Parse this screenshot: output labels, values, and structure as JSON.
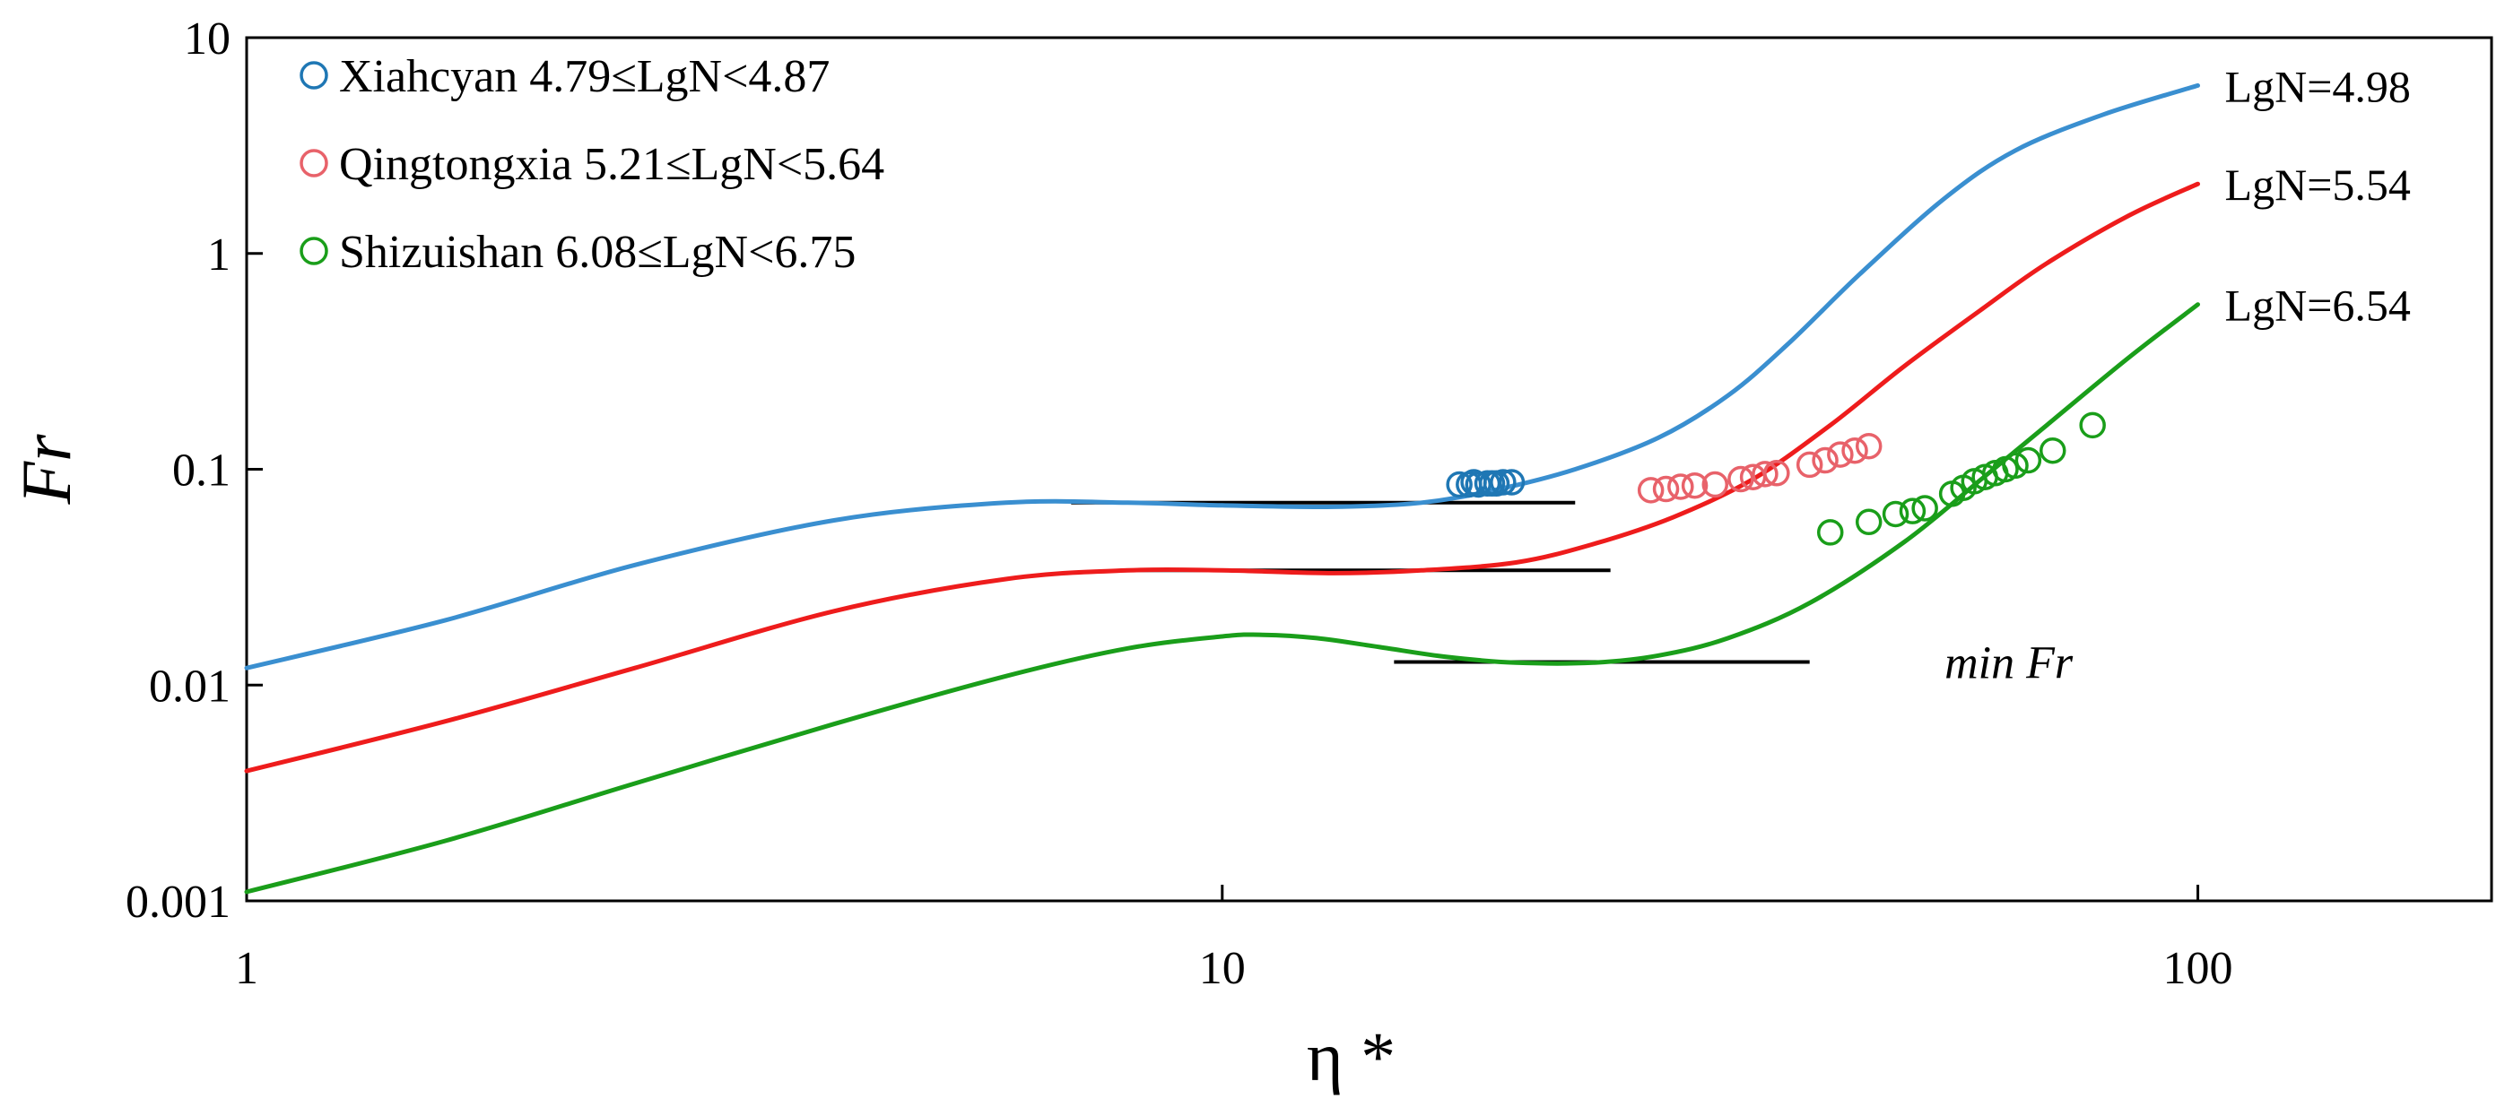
{
  "chart_data": {
    "type": "line",
    "xscale": "log",
    "yscale": "log",
    "xlim": [
      1,
      200
    ],
    "ylim": [
      0.001,
      10
    ],
    "xlabel": "η *",
    "ylabel": "Fr",
    "x_ticks": [
      1,
      10,
      100
    ],
    "x_tick_labels": [
      "1",
      "10",
      "100"
    ],
    "y_ticks": [
      0.001,
      0.01,
      0.1,
      1,
      10
    ],
    "y_tick_labels": [
      "0.001",
      "0.01",
      "0.1",
      "1",
      "10"
    ],
    "legend_position": "top-left",
    "legend": [
      {
        "label": "Xiahcyan 4.79≤LgN<4.87",
        "color": "#1f77b4"
      },
      {
        "label": "Qingtongxia 5.21≤LgN<5.64",
        "color": "#e8626a"
      },
      {
        "label": "Shizuishan 6.08≤LgN<6.75",
        "color": "#1a9e1a"
      }
    ],
    "curves": [
      {
        "name": "LgN=4.98",
        "label": "LgN=4.98",
        "color": "#3a8fd0",
        "x": [
          1,
          1.6,
          2.5,
          4,
          6,
          8,
          10,
          13,
          16,
          19,
          23,
          28,
          33,
          38,
          45,
          55,
          65,
          80,
          100
        ],
        "y": [
          0.012,
          0.02,
          0.036,
          0.058,
          0.07,
          0.07,
          0.068,
          0.067,
          0.07,
          0.08,
          0.1,
          0.14,
          0.22,
          0.38,
          0.8,
          1.8,
          3.0,
          4.4,
          6.0
        ]
      },
      {
        "name": "LgN=5.54",
        "label": "LgN=5.54",
        "color": "#ee1c1c",
        "x": [
          1,
          1.6,
          2.5,
          4,
          6,
          8,
          10,
          13,
          16,
          20,
          24,
          29,
          35,
          42,
          50,
          60,
          70,
          85,
          100
        ],
        "y": [
          0.004,
          0.0068,
          0.012,
          0.022,
          0.031,
          0.034,
          0.034,
          0.033,
          0.034,
          0.037,
          0.045,
          0.06,
          0.09,
          0.16,
          0.3,
          0.55,
          0.9,
          1.5,
          2.1
        ]
      },
      {
        "name": "LgN=6.54",
        "label": "LgN=6.54",
        "color": "#1a9e1a",
        "x": [
          1,
          1.6,
          2.5,
          4,
          6,
          8,
          10,
          11,
          12.5,
          14.5,
          17,
          20,
          24,
          28,
          33,
          40,
          50,
          60,
          70,
          85,
          100
        ],
        "y": [
          0.0011,
          0.0019,
          0.0035,
          0.0066,
          0.011,
          0.0148,
          0.0168,
          0.0171,
          0.0165,
          0.015,
          0.0135,
          0.0127,
          0.0127,
          0.0137,
          0.0165,
          0.024,
          0.046,
          0.09,
          0.16,
          0.33,
          0.58
        ]
      }
    ],
    "min_lines": [
      {
        "x": [
          7,
          23
        ],
        "y": 0.07
      },
      {
        "x": [
          8,
          25
        ],
        "y": 0.034
      },
      {
        "x": [
          15,
          40
        ],
        "y": 0.0128
      }
    ],
    "annotations": [
      {
        "text": "min Fr",
        "x": 55,
        "y": 0.0128
      }
    ],
    "series": [
      {
        "name": "Xiahcyan 4.79≤LgN<4.87",
        "color": "#1f77b4",
        "x": [
          17.5,
          17.9,
          18.3,
          18.7,
          19.1,
          19.4,
          19.8,
          18.1,
          18.9
        ],
        "y": [
          0.085,
          0.085,
          0.085,
          0.086,
          0.086,
          0.087,
          0.087,
          0.087,
          0.086
        ]
      },
      {
        "name": "Qingtongxia 5.21≤LgN<5.64",
        "color": "#e8626a",
        "x": [
          27.5,
          28.5,
          29.5,
          30.5,
          32,
          34,
          35,
          36,
          37,
          40,
          41.5,
          43,
          44.5,
          46
        ],
        "y": [
          0.08,
          0.081,
          0.083,
          0.084,
          0.085,
          0.09,
          0.092,
          0.095,
          0.096,
          0.105,
          0.11,
          0.117,
          0.122,
          0.128
        ]
      },
      {
        "name": "Shizuishan 6.08≤LgN<6.75",
        "color": "#1a9e1a",
        "x": [
          42,
          46,
          49,
          51,
          52.5,
          56,
          57.5,
          59,
          60.5,
          62,
          63.5,
          65,
          67,
          71,
          78
        ],
        "y": [
          0.051,
          0.057,
          0.062,
          0.064,
          0.066,
          0.077,
          0.082,
          0.088,
          0.092,
          0.096,
          0.1,
          0.104,
          0.11,
          0.122,
          0.16
        ]
      }
    ]
  }
}
